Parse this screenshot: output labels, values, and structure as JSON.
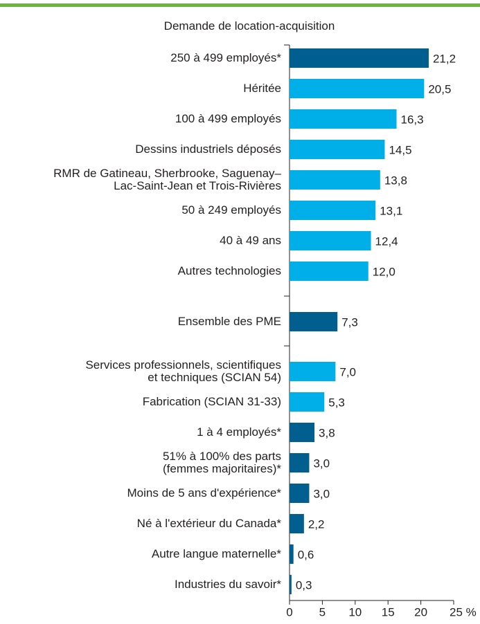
{
  "chart_data": {
    "type": "bar",
    "orientation": "horizontal",
    "title": "Demande de location-acquisition",
    "categories": [
      "250 à 499 employés*",
      "Héritée",
      "100 à 499 employés",
      "Dessins industriels déposés",
      "RMR de Gatineau, Sherbrooke, Saguenay–\nLac-Saint-Jean et Trois-Rivières",
      "50 à 249 employés",
      "40 à 49 ans",
      "Autres technologies",
      "Ensemble des PME",
      "Services professionnels, scientifiques\net techniques (SCIAN 54)",
      "Fabrication (SCIAN 31-33)",
      "1 à 4 employés*",
      "51% à 100% des parts\n(femmes majoritaires)*",
      "Moins de 5 ans d'expérience*",
      "Né à l'extérieur du Canada*",
      "Autre langue maternelle*",
      "Industries du savoir*"
    ],
    "values": [
      21.2,
      20.5,
      16.3,
      14.5,
      13.8,
      13.1,
      12.4,
      12.0,
      7.3,
      7.0,
      5.3,
      3.8,
      3.0,
      3.0,
      2.2,
      0.6,
      0.3
    ],
    "value_labels": [
      "21,2",
      "20,5",
      "16,3",
      "14,5",
      "13,8",
      "13,1",
      "12,4",
      "12,0",
      "7,3",
      "7,0",
      "5,3",
      "3,8",
      "3,0",
      "3,0",
      "2,2",
      "0,6",
      "0,3"
    ],
    "colors": [
      "#005f8f",
      "#00aee8",
      "#00aee8",
      "#00aee8",
      "#00aee8",
      "#00aee8",
      "#00aee8",
      "#00aee8",
      "#005f8f",
      "#00aee8",
      "#00aee8",
      "#005f8f",
      "#005f8f",
      "#005f8f",
      "#005f8f",
      "#005f8f",
      "#005f8f"
    ],
    "xlim": [
      0,
      25
    ],
    "xticks": [
      0,
      5,
      10,
      15,
      20,
      {
        "value": 25,
        "label": "25 %"
      }
    ]
  }
}
